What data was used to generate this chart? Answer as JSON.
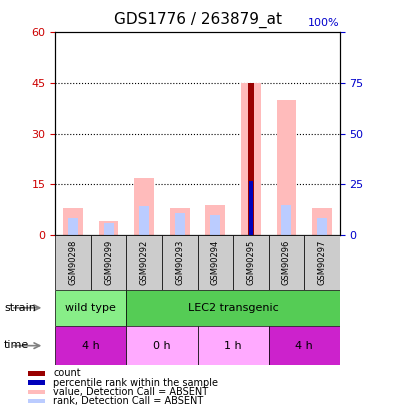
{
  "title": "GDS1776 / 263879_at",
  "samples": [
    "GSM90298",
    "GSM90299",
    "GSM90292",
    "GSM90293",
    "GSM90294",
    "GSM90295",
    "GSM90296",
    "GSM90297"
  ],
  "value_absent": [
    8.0,
    4.0,
    17.0,
    8.0,
    9.0,
    45.0,
    40.0,
    8.0
  ],
  "rank_absent": [
    5.0,
    3.5,
    8.5,
    6.5,
    6.0,
    0.0,
    9.0,
    5.0
  ],
  "count_val": 45.0,
  "count_idx": 5,
  "percentile_val": 16.0,
  "percentile_idx": 5,
  "ylim_left": [
    0,
    60
  ],
  "ylim_right": [
    0,
    100
  ],
  "yticks_left": [
    0,
    15,
    30,
    45,
    60
  ],
  "yticks_right": [
    0,
    25,
    50,
    75,
    100
  ],
  "strain_groups": [
    {
      "label": "wild type",
      "start": 0,
      "end": 2,
      "color": "#88ee88"
    },
    {
      "label": "LEC2 transgenic",
      "start": 2,
      "end": 8,
      "color": "#55cc55"
    }
  ],
  "time_groups": [
    {
      "label": "4 h",
      "start": 0,
      "end": 2,
      "color": "#cc22cc"
    },
    {
      "label": "0 h",
      "start": 2,
      "end": 4,
      "color": "#ffaaff"
    },
    {
      "label": "1 h",
      "start": 4,
      "end": 6,
      "color": "#ffaaff"
    },
    {
      "label": "4 h",
      "start": 6,
      "end": 8,
      "color": "#cc22cc"
    }
  ],
  "bar_colors": {
    "value_absent": "#ffbbbb",
    "rank_absent": "#bbccff",
    "count": "#990000",
    "percentile": "#0000bb"
  },
  "left_axis_color": "#cc0000",
  "right_axis_color": "#0000cc",
  "legend_items": [
    {
      "label": "count",
      "color": "#990000"
    },
    {
      "label": "percentile rank within the sample",
      "color": "#0000bb"
    },
    {
      "label": "value, Detection Call = ABSENT",
      "color": "#ffbbbb"
    },
    {
      "label": "rank, Detection Call = ABSENT",
      "color": "#bbccff"
    }
  ]
}
